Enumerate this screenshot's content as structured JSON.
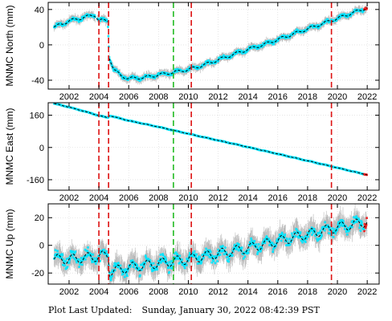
{
  "footer": {
    "label": "Plot Last Updated:",
    "timestamp": "Sunday, January 30, 2022 08:42:39 PST"
  },
  "colors": {
    "scatter": "#00e5ff",
    "errorbars": "#b8b8b8",
    "model": "#000000",
    "offset_line": "#dd1111",
    "equipment_line": "#22bb22",
    "recent_points": "#ee2222"
  },
  "events": {
    "red_dashed_years": [
      2004.0,
      2004.65,
      2010.2,
      2019.6
    ],
    "green_dashed_years": [
      2009.0
    ]
  },
  "chart_data": [
    {
      "type": "scatter",
      "ylabel": "MNMC North (mm)",
      "xlim": [
        2000.6,
        2022.8
      ],
      "ylim": [
        -50,
        48
      ],
      "yticks": [
        -40,
        0,
        40
      ],
      "xticks": [
        2002,
        2004,
        2006,
        2008,
        2010,
        2012,
        2014,
        2016,
        2018,
        2020,
        2022
      ],
      "x": [
        2001.0,
        2002.0,
        2003.0,
        2003.7,
        2004.0,
        2004.6,
        2004.7,
        2005.0,
        2005.5,
        2006.0,
        2007.0,
        2008.0,
        2009.0,
        2010.0,
        2011.0,
        2012.0,
        2013.0,
        2014.0,
        2015.0,
        2016.0,
        2017.0,
        2018.0,
        2019.0,
        2020.0,
        2021.0,
        2022.0
      ],
      "y": [
        20,
        27,
        31,
        34,
        28,
        27,
        -14,
        -28,
        -35,
        -38,
        -37,
        -34,
        -31,
        -28,
        -23,
        -17,
        -11,
        -5,
        0,
        6,
        12,
        18,
        24,
        30,
        36,
        42
      ],
      "grid": true
    },
    {
      "type": "scatter",
      "ylabel": "MNMC East (mm)",
      "xlim": [
        2000.6,
        2022.8
      ],
      "ylim": [
        -212,
        222
      ],
      "yticks": [
        -160,
        0,
        160
      ],
      "xticks": [
        2002,
        2004,
        2006,
        2008,
        2010,
        2012,
        2014,
        2016,
        2018,
        2020,
        2022
      ],
      "x": [
        2001.0,
        2002.0,
        2003.0,
        2004.0,
        2004.6,
        2004.7,
        2006.0,
        2008.0,
        2010.0,
        2012.0,
        2014.0,
        2016.0,
        2018.0,
        2020.0,
        2022.0
      ],
      "y": [
        218,
        200,
        180,
        158,
        148,
        158,
        133,
        102,
        68,
        35,
        2,
        -32,
        -66,
        -101,
        -136
      ],
      "grid": true
    },
    {
      "type": "scatter",
      "ylabel": "MNMC Up (mm)",
      "xlim": [
        2000.6,
        2022.8
      ],
      "ylim": [
        -28,
        30
      ],
      "yticks": [
        -20,
        0,
        20
      ],
      "xticks": [
        2002,
        2004,
        2006,
        2008,
        2010,
        2012,
        2014,
        2016,
        2018,
        2020,
        2022
      ],
      "x": [
        2001.0,
        2002.0,
        2003.0,
        2004.0,
        2004.65,
        2004.7,
        2006.0,
        2008.0,
        2010.0,
        2012.0,
        2014.0,
        2016.0,
        2018.0,
        2020.0,
        2022.0
      ],
      "y": [
        -10,
        -10,
        -9,
        -8,
        -7,
        -19,
        -16,
        -13,
        -10,
        -6,
        -2,
        3,
        8,
        13,
        17
      ],
      "grid": true
    }
  ]
}
